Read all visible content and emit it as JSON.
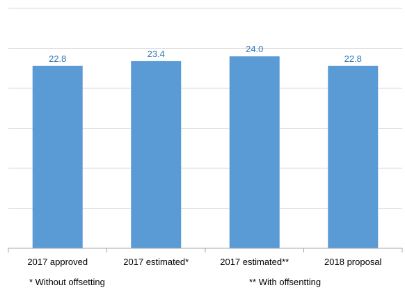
{
  "chart_data": {
    "type": "bar",
    "categories": [
      "2017 approved",
      "2017 estimated*",
      "2017 estimated**",
      "2018 proposal"
    ],
    "values": [
      22.8,
      23.4,
      24.0,
      22.8
    ],
    "data_labels": [
      "22.8",
      "23.4",
      "24.0",
      "22.8"
    ],
    "title": "",
    "xlabel": "",
    "ylabel": "",
    "ylim": [
      0,
      30
    ],
    "grid": true,
    "bar_color": "#5b9bd5",
    "label_color": "#2e75b6",
    "grid_color": "#d9d9d9",
    "axis_color": "#a6a6a6"
  },
  "footnotes": {
    "left": "* Without offsetting",
    "right": "** With offsentting"
  }
}
